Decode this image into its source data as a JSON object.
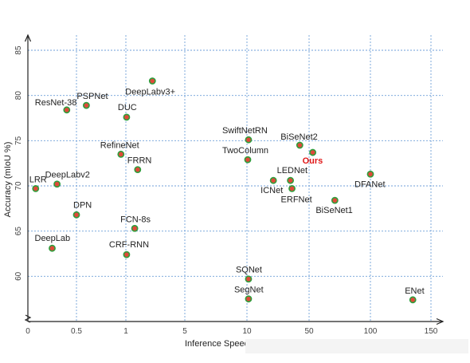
{
  "chart_data": {
    "type": "scatter",
    "title": "",
    "xlabel": "Inference Speed",
    "ylabel": "Accuracy (mIoU %)",
    "x_tick_labels": [
      "0",
      "0.5",
      "1",
      "5",
      "10",
      "50",
      "100",
      "150"
    ],
    "y_ticks": [
      60,
      65,
      70,
      75,
      80,
      85
    ],
    "ylim": [
      55,
      87
    ],
    "grid": true,
    "points": [
      {
        "label": "ResNet-38",
        "x": 0.4,
        "y": 78.4
      },
      {
        "label": "PSPNet",
        "x": 0.6,
        "y": 78.9
      },
      {
        "label": "DeepLabv3+",
        "x": 2.8,
        "y": 81.6
      },
      {
        "label": "DUC",
        "x": 1.05,
        "y": 77.6
      },
      {
        "label": "RefineNet",
        "x": 0.95,
        "y": 73.5
      },
      {
        "label": "FRRN",
        "x": 1.8,
        "y": 71.8
      },
      {
        "label": "LRR",
        "x": 0.08,
        "y": 69.7
      },
      {
        "label": "DeepLabv2",
        "x": 0.3,
        "y": 70.2
      },
      {
        "label": "DPN",
        "x": 0.5,
        "y": 66.8
      },
      {
        "label": "FCN-8s",
        "x": 1.6,
        "y": 65.3
      },
      {
        "label": "DeepLab",
        "x": 0.25,
        "y": 63.1
      },
      {
        "label": "CRF-RNN",
        "x": 1.05,
        "y": 62.4
      },
      {
        "label": "SwiftNetRN",
        "x": 11,
        "y": 75.1
      },
      {
        "label": "TwoColumn",
        "x": 10.5,
        "y": 72.9
      },
      {
        "label": "BiSeNet2",
        "x": 44,
        "y": 74.5
      },
      {
        "label": "Ours",
        "x": 53,
        "y": 73.7,
        "highlight": true
      },
      {
        "label": "LEDNet",
        "x": 38,
        "y": 70.6
      },
      {
        "label": "ICNet",
        "x": 27,
        "y": 70.6
      },
      {
        "label": "ERFNet",
        "x": 39,
        "y": 69.7
      },
      {
        "label": "DFANet",
        "x": 100,
        "y": 71.3
      },
      {
        "label": "BiSeNet1",
        "x": 71,
        "y": 68.4
      },
      {
        "label": "SQNet",
        "x": 11,
        "y": 59.7
      },
      {
        "label": "SegNet",
        "x": 11,
        "y": 57.5
      },
      {
        "label": "ENet",
        "x": 135,
        "y": 57.4
      }
    ]
  }
}
